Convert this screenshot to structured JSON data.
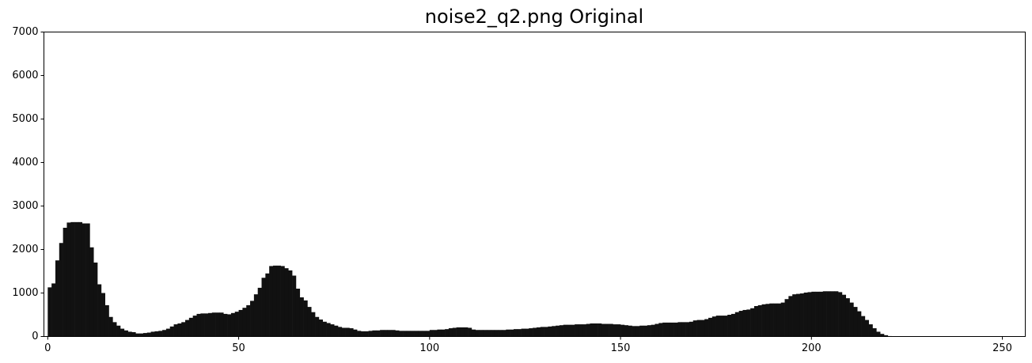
{
  "chart_data": {
    "type": "histogram",
    "title": "noise2_q2.png Original",
    "color": "#111111",
    "bins": [
      0,
      1,
      2,
      3,
      4,
      5,
      6,
      7,
      8,
      9,
      10,
      11,
      12,
      13,
      14,
      15,
      16,
      17,
      18,
      19,
      20,
      21,
      22,
      23,
      24,
      25,
      26,
      27,
      28,
      29,
      30,
      31,
      32,
      33,
      34,
      35,
      36,
      37,
      38,
      39,
      40,
      41,
      42,
      43,
      44,
      45,
      46,
      47,
      48,
      49,
      50,
      51,
      52,
      53,
      54,
      55,
      56,
      57,
      58,
      59,
      60,
      61,
      62,
      63,
      64,
      65,
      66,
      67,
      68,
      69,
      70,
      71,
      72,
      73,
      74,
      75,
      76,
      77,
      78,
      79,
      80,
      81,
      82,
      83,
      84,
      85,
      86,
      87,
      88,
      89,
      90,
      91,
      92,
      93,
      94,
      95,
      96,
      97,
      98,
      99,
      100,
      101,
      102,
      103,
      104,
      105,
      106,
      107,
      108,
      109,
      110,
      111,
      112,
      113,
      114,
      115,
      116,
      117,
      118,
      119,
      120,
      121,
      122,
      123,
      124,
      125,
      126,
      127,
      128,
      129,
      130,
      131,
      132,
      133,
      134,
      135,
      136,
      137,
      138,
      139,
      140,
      141,
      142,
      143,
      144,
      145,
      146,
      147,
      148,
      149,
      150,
      151,
      152,
      153,
      154,
      155,
      156,
      157,
      158,
      159,
      160,
      161,
      162,
      163,
      164,
      165,
      166,
      167,
      168,
      169,
      170,
      171,
      172,
      173,
      174,
      175,
      176,
      177,
      178,
      179,
      180,
      181,
      182,
      183,
      184,
      185,
      186,
      187,
      188,
      189,
      190,
      191,
      192,
      193,
      194,
      195,
      196,
      197,
      198,
      199,
      200,
      201,
      202,
      203,
      204,
      205,
      206,
      207,
      208,
      209,
      210,
      211,
      212,
      213,
      214,
      215,
      216,
      217,
      218,
      219,
      220,
      221,
      222,
      223,
      224,
      225,
      226,
      227,
      228,
      229,
      230,
      231,
      232,
      233,
      234,
      235,
      236,
      237,
      238,
      239,
      240,
      241,
      242,
      243,
      244,
      245,
      246,
      247,
      248,
      249,
      250,
      251,
      252,
      253,
      254,
      255,
      256
    ],
    "values": [
      1130,
      1220,
      1750,
      2150,
      2500,
      2620,
      2630,
      2630,
      2630,
      2600,
      2600,
      2050,
      1700,
      1200,
      1000,
      720,
      450,
      330,
      250,
      180,
      140,
      110,
      100,
      70,
      70,
      80,
      90,
      110,
      120,
      130,
      150,
      180,
      230,
      280,
      300,
      330,
      380,
      430,
      480,
      520,
      530,
      530,
      540,
      550,
      550,
      550,
      520,
      510,
      540,
      570,
      610,
      660,
      720,
      820,
      970,
      1120,
      1350,
      1450,
      1620,
      1630,
      1630,
      1620,
      1570,
      1520,
      1400,
      1100,
      900,
      830,
      680,
      560,
      450,
      390,
      340,
      310,
      280,
      250,
      220,
      200,
      200,
      190,
      160,
      130,
      120,
      120,
      130,
      140,
      140,
      150,
      150,
      150,
      150,
      140,
      130,
      130,
      130,
      130,
      130,
      130,
      130,
      130,
      150,
      150,
      160,
      160,
      170,
      190,
      200,
      210,
      210,
      210,
      200,
      160,
      150,
      150,
      150,
      150,
      150,
      150,
      150,
      150,
      160,
      160,
      170,
      170,
      180,
      180,
      190,
      200,
      210,
      220,
      220,
      230,
      240,
      250,
      260,
      270,
      270,
      270,
      280,
      280,
      280,
      290,
      300,
      300,
      300,
      290,
      290,
      290,
      280,
      280,
      270,
      260,
      250,
      240,
      240,
      250,
      250,
      260,
      270,
      290,
      310,
      320,
      320,
      320,
      320,
      330,
      330,
      330,
      340,
      370,
      380,
      380,
      400,
      430,
      460,
      480,
      480,
      480,
      500,
      520,
      560,
      590,
      610,
      620,
      650,
      700,
      720,
      740,
      750,
      760,
      760,
      760,
      780,
      860,
      930,
      970,
      980,
      990,
      1010,
      1020,
      1030,
      1030,
      1030,
      1040,
      1040,
      1040,
      1040,
      1020,
      960,
      880,
      780,
      680,
      580,
      470,
      380,
      280,
      190,
      110,
      60,
      30,
      10,
      5,
      0,
      0,
      0,
      0,
      0,
      0,
      0,
      0,
      0,
      0,
      0,
      0,
      0,
      0,
      0,
      0,
      0,
      0,
      0,
      0,
      0,
      0,
      0,
      0,
      0,
      0,
      0,
      0,
      0,
      0,
      0,
      0,
      0,
      0
    ],
    "xlim": [
      -1,
      256
    ],
    "xticks": [
      0,
      50,
      100,
      150,
      200,
      250
    ],
    "ylim": [
      0,
      7000
    ],
    "yticks": [
      0,
      1000,
      2000,
      3000,
      4000,
      5000,
      6000,
      7000
    ]
  }
}
